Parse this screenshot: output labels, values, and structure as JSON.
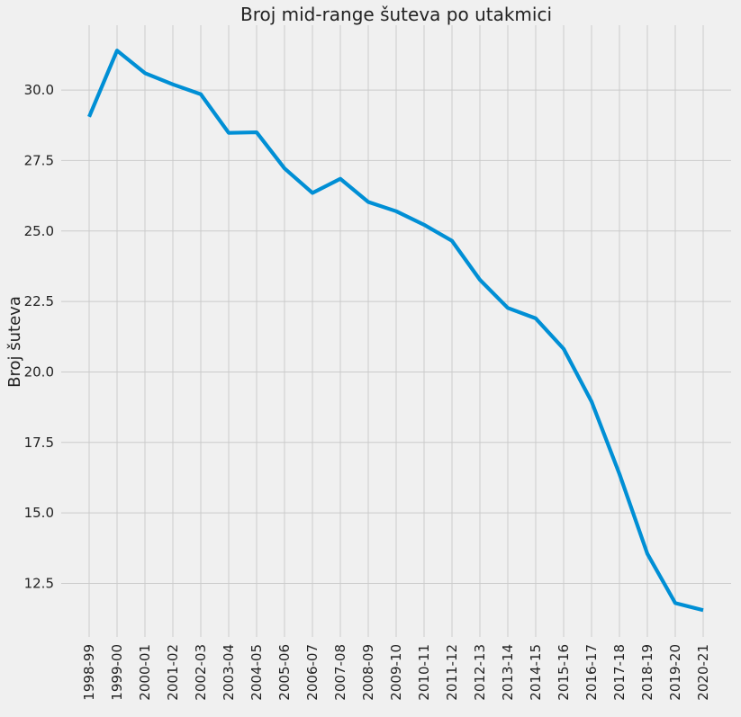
{
  "chart_data": {
    "type": "line",
    "title": "Broj mid-range šuteva po utakmici",
    "xlabel": "",
    "ylabel": "Broj šuteva",
    "categories": [
      "1998-99",
      "1999-00",
      "2000-01",
      "2001-02",
      "2002-03",
      "2003-04",
      "2004-05",
      "2005-06",
      "2006-07",
      "2007-08",
      "2008-09",
      "2009-10",
      "2010-11",
      "2011-12",
      "2012-13",
      "2013-14",
      "2014-15",
      "2015-16",
      "2016-17",
      "2017-18",
      "2018-19",
      "2019-20",
      "2020-21"
    ],
    "series": [
      {
        "values": [
          29.05,
          31.4,
          30.6,
          30.2,
          29.85,
          28.48,
          28.5,
          27.22,
          26.35,
          26.85,
          26.03,
          25.7,
          25.22,
          24.65,
          23.27,
          22.27,
          21.9,
          20.82,
          18.95,
          16.38,
          13.55,
          11.8,
          11.55
        ],
        "color": "#008fd5"
      }
    ],
    "yticks": [
      "12.5",
      "15.0",
      "17.5",
      "20.0",
      "22.5",
      "25.0",
      "27.5",
      "30.0"
    ],
    "ylim": [
      10.6,
      32.3
    ],
    "grid": true,
    "legend": "none"
  }
}
